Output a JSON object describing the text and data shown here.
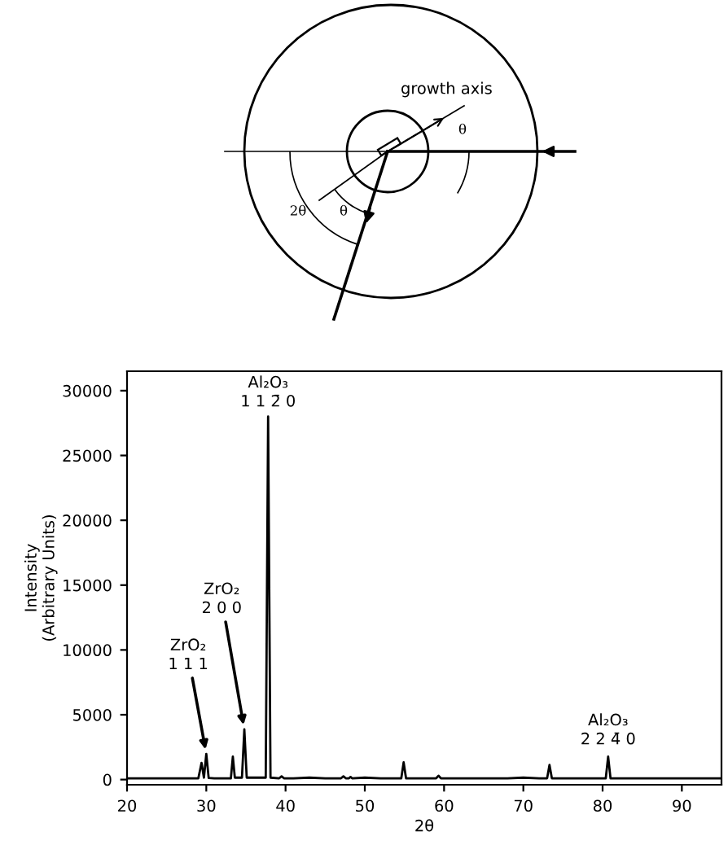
{
  "chart_data": {
    "type": "line",
    "xlabel": "2θ",
    "ylabel": "Intensity\n(Arbitrary Units)",
    "x": [
      20,
      22,
      24,
      26,
      28,
      29.0,
      29.4,
      29.7,
      30.0,
      30.3,
      31,
      32,
      33.1,
      33.35,
      33.6,
      34.5,
      34.8,
      35.1,
      36,
      37.5,
      37.8,
      38.1,
      39.2,
      39.5,
      39.8,
      41,
      43,
      45,
      47.0,
      47.3,
      47.6,
      48.0,
      48.2,
      48.4,
      50,
      52,
      54.6,
      54.9,
      55.2,
      57,
      59.0,
      59.3,
      59.6,
      62,
      65,
      68,
      70,
      72,
      73.0,
      73.3,
      73.6,
      76,
      80.4,
      80.7,
      81.0,
      84,
      88,
      92,
      95
    ],
    "values": [
      100,
      100,
      100,
      100,
      100,
      100,
      1290,
      150,
      1980,
      120,
      100,
      100,
      100,
      1770,
      150,
      150,
      3870,
      150,
      150,
      150,
      28000,
      150,
      100,
      250,
      100,
      100,
      150,
      100,
      100,
      250,
      100,
      100,
      200,
      100,
      150,
      100,
      100,
      1330,
      100,
      100,
      100,
      300,
      100,
      100,
      100,
      100,
      150,
      100,
      100,
      1130,
      100,
      100,
      100,
      1770,
      100,
      100,
      100,
      100,
      100
    ],
    "color": "#000000",
    "xlim": [
      20,
      95
    ],
    "xticks": [
      20,
      30,
      40,
      50,
      60,
      70,
      80,
      90
    ],
    "ylim": [
      -400,
      31500
    ],
    "yticks": [
      0,
      5000,
      10000,
      15000,
      20000,
      25000,
      30000
    ],
    "grid": false,
    "legend": false,
    "annotations": [
      "growth axis",
      "θ",
      "2θ",
      "θ",
      {
        "text": "ZrO₂\n1 1 1",
        "x": 30.0,
        "y": 1980
      },
      {
        "text": "ZrO₂\n2 0 0",
        "x": 34.8,
        "y": 3870
      },
      {
        "text": "Al₂O₃\n1 1 2̄ 0",
        "x": 37.8,
        "y": 28000
      },
      {
        "text": "Al₂O₃\n2 2 4̄ 0",
        "x": 80.7,
        "y": 1770
      }
    ]
  }
}
